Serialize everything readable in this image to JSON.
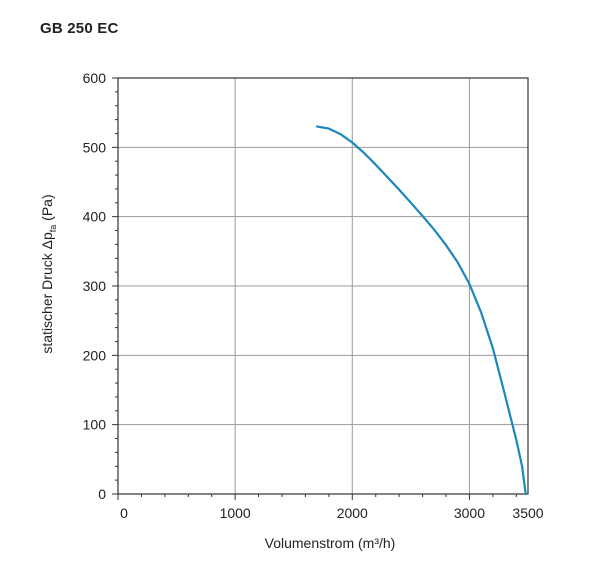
{
  "title": "GB 250 EC",
  "chart_data": {
    "type": "line",
    "title": "GB 250 EC",
    "xlabel": "Volumenstrom (m³/h)",
    "ylabel": "statischer Druck Δp",
    "ylabel_sub": "fa",
    "ylabel_unit": " (Pa)",
    "xlim": [
      0,
      3500
    ],
    "ylim": [
      0,
      600
    ],
    "xticks": [
      0,
      1000,
      2000,
      3000,
      3500
    ],
    "xtick_labels": [
      "0",
      "1000",
      "2000",
      "3000",
      "3500"
    ],
    "yticks": [
      0,
      100,
      200,
      300,
      400,
      500,
      600
    ],
    "ytick_labels": [
      "0",
      "100",
      "200",
      "300",
      "400",
      "500",
      "600"
    ],
    "grid": true,
    "series_color": "#1b87bd",
    "series": [
      {
        "name": "GB 250 EC",
        "x": [
          1700,
          1800,
          1900,
          2000,
          2100,
          2200,
          2300,
          2400,
          2500,
          2600,
          2700,
          2800,
          2900,
          3000,
          3100,
          3200,
          3300,
          3400,
          3450,
          3480
        ],
        "y": [
          530,
          527,
          519,
          507,
          492,
          475,
          457,
          439,
          420,
          401,
          381,
          359,
          334,
          303,
          262,
          210,
          145,
          78,
          40,
          0
        ]
      }
    ]
  }
}
